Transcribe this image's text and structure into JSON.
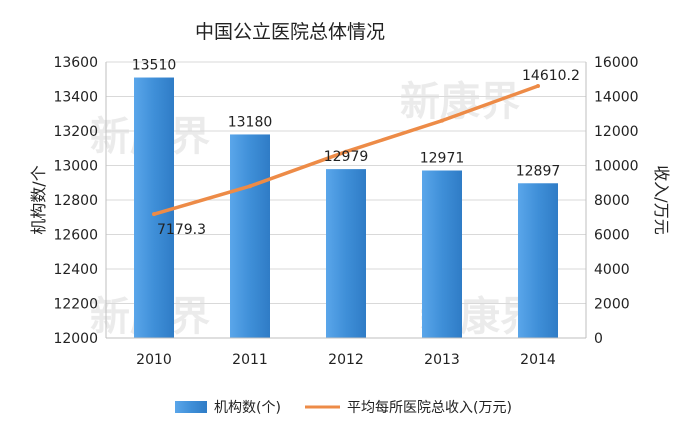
{
  "chart_data": {
    "type": "bar",
    "title": "中国公立医院总体情况",
    "categories": [
      "2010",
      "2011",
      "2012",
      "2013",
      "2014"
    ],
    "series": [
      {
        "name": "机构数(个)",
        "type": "bar",
        "axis": "left",
        "values": [
          13510,
          13180,
          12979,
          12971,
          12897
        ],
        "labels": [
          "13510",
          "13180",
          "12979",
          "12971",
          "12897"
        ]
      },
      {
        "name": "平均每所医院总收入(万元)",
        "type": "line",
        "axis": "right",
        "values": [
          7179.3,
          8800,
          10800,
          12600,
          14610.2
        ],
        "labels": [
          "7179.3",
          "",
          "",
          "",
          "14610.2"
        ]
      }
    ],
    "y_left": {
      "label": "机构数/个",
      "min": 12000,
      "max": 13600,
      "step": 200
    },
    "y_right": {
      "label": "收入/万元",
      "min": 0,
      "max": 16000,
      "step": 2000
    },
    "legend_position": "bottom",
    "colors": {
      "bar": "#3f8fd8",
      "line": "#ed8b47",
      "grid": "#d9d9d9"
    }
  },
  "watermark": "新康界"
}
